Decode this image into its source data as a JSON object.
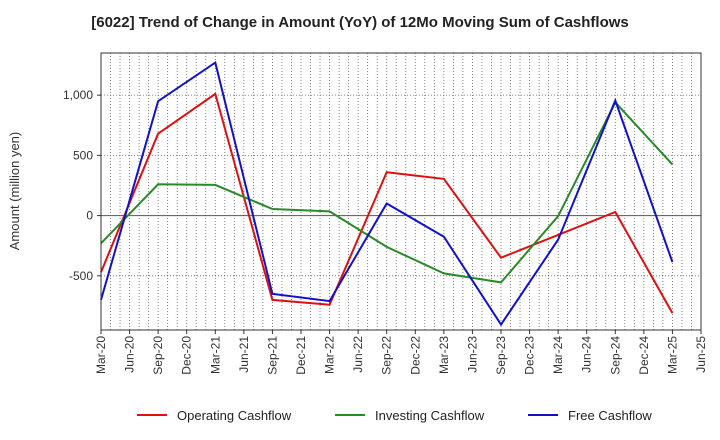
{
  "chart_data": {
    "type": "line",
    "title": "[6022]  Trend of Change in Amount (YoY) of 12Mo Moving Sum of Cashflows",
    "xlabel": "",
    "ylabel": "Amount (million yen)",
    "ylim": [
      -950,
      1350
    ],
    "yticks": [
      -500,
      0,
      500,
      1000
    ],
    "ytick_labels": [
      "-500",
      "0",
      "500",
      "1,000"
    ],
    "categories": [
      "Mar-20",
      "Jun-20",
      "Sep-20",
      "Dec-20",
      "Mar-21",
      "Jun-21",
      "Sep-21",
      "Dec-21",
      "Mar-22",
      "Jun-22",
      "Sep-22",
      "Dec-22",
      "Mar-23",
      "Jun-23",
      "Sep-23",
      "Dec-23",
      "Mar-24",
      "Jun-24",
      "Sep-24",
      "Dec-24",
      "Mar-25",
      "Jun-25"
    ],
    "grid": true,
    "legend_position": "bottom",
    "series": [
      {
        "name": "Operating Cashflow",
        "color": "#dd1111",
        "points": [
          [
            "Mar-20",
            -470
          ],
          [
            "Sep-20",
            680
          ],
          [
            "Mar-21",
            1010
          ],
          [
            "Sep-21",
            -700
          ],
          [
            "Mar-22",
            -740
          ],
          [
            "Sep-22",
            360
          ],
          [
            "Mar-23",
            305
          ],
          [
            "Sep-23",
            -350
          ],
          [
            "Mar-24",
            -160
          ],
          [
            "Sep-24",
            30
          ],
          [
            "Mar-25",
            -810
          ]
        ]
      },
      {
        "name": "Investing Cashflow",
        "color": "#2a8a2a",
        "points": [
          [
            "Mar-20",
            -230
          ],
          [
            "Sep-20",
            260
          ],
          [
            "Mar-21",
            255
          ],
          [
            "Sep-21",
            55
          ],
          [
            "Mar-22",
            35
          ],
          [
            "Sep-22",
            -260
          ],
          [
            "Mar-23",
            -480
          ],
          [
            "Sep-23",
            -555
          ],
          [
            "Mar-24",
            -5
          ],
          [
            "Sep-24",
            940
          ],
          [
            "Mar-25",
            425
          ]
        ]
      },
      {
        "name": "Free Cashflow",
        "color": "#1111cc",
        "points": [
          [
            "Mar-20",
            -700
          ],
          [
            "Sep-20",
            950
          ],
          [
            "Mar-21",
            1270
          ],
          [
            "Sep-21",
            -650
          ],
          [
            "Mar-22",
            -710
          ],
          [
            "Sep-22",
            100
          ],
          [
            "Mar-23",
            -175
          ],
          [
            "Sep-23",
            -905
          ],
          [
            "Mar-24",
            -200
          ],
          [
            "Sep-24",
            955
          ],
          [
            "Mar-25",
            -385
          ]
        ]
      }
    ]
  }
}
